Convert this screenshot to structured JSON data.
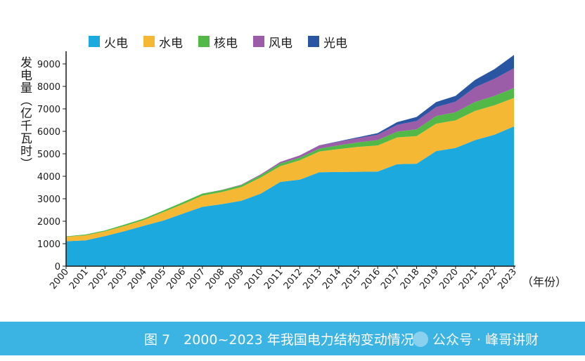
{
  "chart_data": {
    "type": "area",
    "stacked": true,
    "ylabel": "发电量（亿千瓦时）",
    "xlabel": "（年份）",
    "ylim": [
      0,
      9500
    ],
    "y_ticks": [
      0,
      1000,
      2000,
      3000,
      4000,
      5000,
      6000,
      7000,
      8000,
      9000
    ],
    "categories": [
      "2000",
      "2001",
      "2002",
      "2003",
      "2004",
      "2005",
      "2006",
      "2007",
      "2008",
      "2009",
      "2010",
      "2011",
      "2012",
      "2013",
      "2014",
      "2015",
      "2016",
      "2017",
      "2018",
      "2019",
      "2020",
      "2021",
      "2022",
      "2023"
    ],
    "series": [
      {
        "name": "火电",
        "color": "#1ca9dd",
        "values": [
          1110,
          1150,
          1340,
          1560,
          1800,
          2030,
          2340,
          2640,
          2760,
          2910,
          3230,
          3750,
          3850,
          4180,
          4190,
          4200,
          4210,
          4540,
          4560,
          5120,
          5260,
          5610,
          5850,
          6220
        ]
      },
      {
        "name": "水电",
        "color": "#f5b835",
        "values": [
          200,
          220,
          210,
          230,
          260,
          380,
          420,
          500,
          540,
          610,
          720,
          700,
          860,
          920,
          1020,
          1110,
          1160,
          1190,
          1230,
          1220,
          1230,
          1300,
          1310,
          1270
        ]
      },
      {
        "name": "核电",
        "color": "#52b848",
        "values": [
          20,
          40,
          40,
          60,
          60,
          70,
          90,
          90,
          90,
          90,
          100,
          120,
          120,
          130,
          170,
          200,
          240,
          260,
          300,
          340,
          360,
          400,
          420,
          440
        ]
      },
      {
        "name": "风电",
        "color": "#9b5da8",
        "values": [
          0,
          0,
          0,
          0,
          0,
          0,
          0,
          0,
          10,
          20,
          40,
          70,
          100,
          140,
          160,
          190,
          240,
          300,
          370,
          400,
          470,
          650,
          760,
          880
        ]
      },
      {
        "name": "光电",
        "color": "#2a55a3",
        "values": [
          0,
          0,
          0,
          0,
          0,
          0,
          0,
          0,
          0,
          0,
          0,
          0,
          0,
          10,
          20,
          40,
          70,
          120,
          180,
          220,
          260,
          330,
          430,
          590
        ]
      }
    ],
    "grid": false,
    "legend_position": "top-left"
  },
  "caption": {
    "text": "图 7　2000~2023 年我国电力结构变动情况",
    "watermark": "公众号 · 峰哥讲财"
  }
}
